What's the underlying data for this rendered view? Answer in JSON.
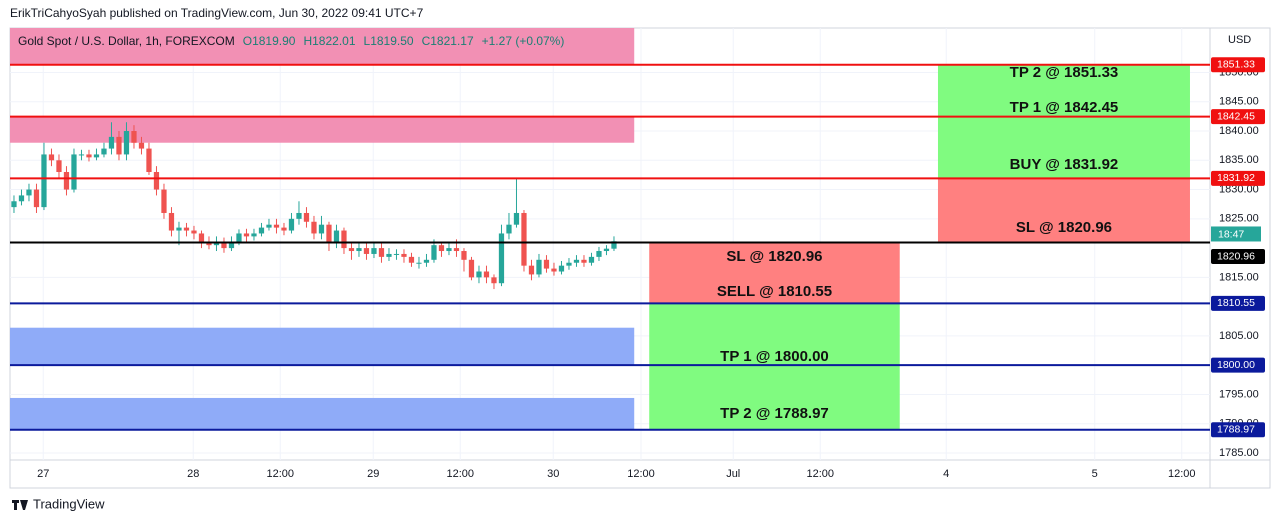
{
  "header": {
    "publisher": "ErikTriCahyoSyah published on TradingView.com, Jun 30, 2022 09:41 UTC+7",
    "footer": "TradingView"
  },
  "chart_data": {
    "type": "candlestick",
    "symbol": "Gold Spot / U.S. Dollar, 1h, FOREXCOM",
    "ohlc_legend": [
      "O1819.90",
      "H1822.01",
      "L1819.50",
      "C1821.17"
    ],
    "change": "+1.27 (+0.07%)",
    "y_unit": "USD",
    "countdown": "18:47",
    "up_color": "#26a69a",
    "down_color": "#ef5350",
    "grid": true,
    "xlim": [
      -0.53,
      159.47
    ],
    "xticks": [
      {
        "value": 3.9,
        "label": "27"
      },
      {
        "value": 23.9,
        "label": "28"
      },
      {
        "value": 35.5,
        "label": "12:00"
      },
      {
        "value": 47.9,
        "label": "29"
      },
      {
        "value": 59.5,
        "label": "12:00"
      },
      {
        "value": 71.9,
        "label": "30"
      },
      {
        "value": 83.6,
        "label": "12:00"
      },
      {
        "value": 95.9,
        "label": "Jul"
      },
      {
        "value": 107.5,
        "label": "12:00"
      },
      {
        "value": 124.3,
        "label": "4"
      },
      {
        "value": 144.1,
        "label": "5"
      },
      {
        "value": 155.7,
        "label": "12:00"
      }
    ],
    "ylim": [
      1783.8,
      1857.6
    ],
    "yticks": [
      {
        "value": 1785,
        "label": "1785.00"
      },
      {
        "value": 1790,
        "label": "1790.00"
      },
      {
        "value": 1795,
        "label": "1795.00"
      },
      {
        "value": 1805,
        "label": "1805.00"
      },
      {
        "value": 1815,
        "label": "1815.00"
      },
      {
        "value": 1825,
        "label": "1825.00"
      },
      {
        "value": 1830,
        "label": "1830.00"
      },
      {
        "value": 1835,
        "label": "1835.00"
      },
      {
        "value": 1840,
        "label": "1840.00"
      },
      {
        "value": 1845,
        "label": "1845.00"
      },
      {
        "value": 1850,
        "label": "1850.00"
      }
    ],
    "open": [
      1827,
      1828,
      1829,
      1830,
      1827,
      1836,
      1835,
      1833,
      1830,
      1836,
      1836,
      1835.5,
      1836,
      1837,
      1839,
      1836,
      1840,
      1838,
      1837,
      1833,
      1830,
      1826,
      1823,
      1823.5,
      1823,
      1822.5,
      1821,
      1820.5,
      1821,
      1820,
      1821,
      1822.5,
      1822,
      1822.5,
      1823.5,
      1824,
      1823.5,
      1823,
      1825,
      1826,
      1824.5,
      1822.5,
      1824,
      1821,
      1823,
      1820,
      1819.5,
      1820,
      1819,
      1820,
      1818.5,
      1819,
      1819,
      1818.5,
      1817.5,
      1817.5,
      1818,
      1820.5,
      1819.5,
      1820,
      1819.5,
      1818,
      1815,
      1816,
      1815,
      1814,
      1822.5,
      1824,
      1826,
      1817,
      1815.5,
      1818,
      1816.5,
      1816,
      1817,
      1817.5,
      1818,
      1817.5,
      1818.5,
      1819.5,
      1819.9
    ],
    "high": [
      1829,
      1830,
      1831,
      1831,
      1838,
      1837,
      1836,
      1834,
      1837,
      1836.8,
      1836.8,
      1837,
      1838,
      1841.5,
      1840,
      1841.5,
      1841,
      1839,
      1838,
      1834,
      1831,
      1827,
      1824.5,
      1824.3,
      1823.8,
      1823,
      1822,
      1822,
      1821.8,
      1822,
      1823.2,
      1823.3,
      1823.3,
      1824.3,
      1825,
      1825,
      1824.3,
      1826,
      1828,
      1827,
      1825.5,
      1825.5,
      1824.5,
      1824,
      1823.5,
      1821,
      1821,
      1821,
      1821,
      1820.8,
      1820,
      1819.8,
      1819.8,
      1819.2,
      1818.5,
      1819,
      1821.5,
      1821,
      1821,
      1821.5,
      1820,
      1818.5,
      1817,
      1817,
      1815.5,
      1824,
      1826,
      1832,
      1826.5,
      1818,
      1819,
      1818.8,
      1817.5,
      1817.8,
      1818.3,
      1818.8,
      1818.8,
      1819.2,
      1820.2,
      1820.5,
      1822.01
    ],
    "low": [
      1826,
      1827.3,
      1828,
      1826,
      1826.5,
      1834,
      1832,
      1829,
      1829.5,
      1835,
      1834.8,
      1835,
      1835.5,
      1836,
      1835,
      1835,
      1837,
      1836,
      1832.5,
      1829,
      1825,
      1822,
      1820.5,
      1822,
      1821.5,
      1820,
      1819.8,
      1819.5,
      1819.2,
      1819.5,
      1820.5,
      1821,
      1821.3,
      1822,
      1823,
      1822.5,
      1822.2,
      1822.5,
      1824,
      1823.5,
      1821.5,
      1821.5,
      1819.5,
      1820,
      1819,
      1818,
      1818.5,
      1818,
      1818.3,
      1817.5,
      1817.8,
      1818,
      1817.5,
      1816.8,
      1816.5,
      1816.8,
      1817.5,
      1818.5,
      1818.8,
      1818.5,
      1816,
      1814.5,
      1814,
      1814,
      1813,
      1813.5,
      1821.5,
      1823.5,
      1816,
      1814.5,
      1815,
      1815.8,
      1815.3,
      1815.5,
      1816.3,
      1816.8,
      1816.8,
      1817,
      1817.8,
      1818.8,
      1819.5
    ],
    "close": [
      1828,
      1829,
      1830,
      1827,
      1836,
      1835,
      1833,
      1830,
      1836,
      1836,
      1835.5,
      1836,
      1837,
      1839,
      1836,
      1840,
      1838,
      1837,
      1833,
      1830,
      1826,
      1823,
      1823.5,
      1823,
      1822.5,
      1821,
      1820.5,
      1821,
      1820,
      1821,
      1822.5,
      1822,
      1822.5,
      1823.5,
      1824,
      1823.5,
      1823,
      1825,
      1826,
      1824.5,
      1822.5,
      1824,
      1821,
      1823,
      1820,
      1819.5,
      1820,
      1819,
      1820,
      1818.5,
      1819,
      1819,
      1818.5,
      1817.5,
      1817.5,
      1818,
      1820.5,
      1819.5,
      1820,
      1819.5,
      1818,
      1815,
      1816,
      1815,
      1814,
      1822.5,
      1824,
      1826,
      1817,
      1815.5,
      1818,
      1816.5,
      1816,
      1817,
      1817.5,
      1818,
      1817.5,
      1818.5,
      1819.5,
      1819.9,
      1821.17
    ],
    "zones": [
      {
        "xlim": [
          -0.53,
          82.7
        ],
        "ylim": [
          1851.33,
          1857.6
        ],
        "color": "#f290b4"
      },
      {
        "xlim": [
          -0.53,
          82.7
        ],
        "ylim": [
          1838.0,
          1842.45
        ],
        "color": "#f290b4"
      },
      {
        "xlim": [
          -0.53,
          82.7
        ],
        "ylim": [
          1800.0,
          1806.4
        ],
        "color": "#8fabf8"
      },
      {
        "xlim": [
          -0.53,
          82.7
        ],
        "ylim": [
          1788.97,
          1794.4
        ],
        "color": "#8fabf8"
      },
      {
        "xlim": [
          123.2,
          156.8
        ],
        "ylim": [
          1831.92,
          1851.33
        ],
        "color": "#80fb80"
      },
      {
        "xlim": [
          123.2,
          156.8
        ],
        "ylim": [
          1820.96,
          1831.92
        ],
        "color": "#ff8080"
      },
      {
        "xlim": [
          84.7,
          118.1
        ],
        "ylim": [
          1810.55,
          1820.96
        ],
        "color": "#ff8080"
      },
      {
        "xlim": [
          84.7,
          118.1
        ],
        "ylim": [
          1788.97,
          1810.55
        ],
        "color": "#80fb80"
      }
    ],
    "levels": [
      {
        "value": 1851.33,
        "label": "1851.33",
        "color": "#f01010"
      },
      {
        "value": 1842.45,
        "label": "1842.45",
        "color": "#f01010"
      },
      {
        "value": 1831.92,
        "label": "1831.92",
        "color": "#f01010"
      },
      {
        "value": 1820.96,
        "label": "1820.96",
        "color": "#000000"
      },
      {
        "value": 1810.55,
        "label": "1810.55",
        "color": "#0b1a9c"
      },
      {
        "value": 1800.0,
        "label": "1800.00",
        "color": "#0b1a9c"
      },
      {
        "value": 1788.97,
        "label": "1788.97",
        "color": "#0b1a9c"
      }
    ],
    "annotations": [
      "TP 2 @ 1851.33",
      "TP 1 @ 1842.45",
      "BUY @ 1831.92",
      "SL @ 1820.96",
      "SL @ 1820.96",
      "SELL @ 1810.55",
      "TP 1 @ 1800.00",
      "TP 2 @ 1788.97"
    ]
  }
}
